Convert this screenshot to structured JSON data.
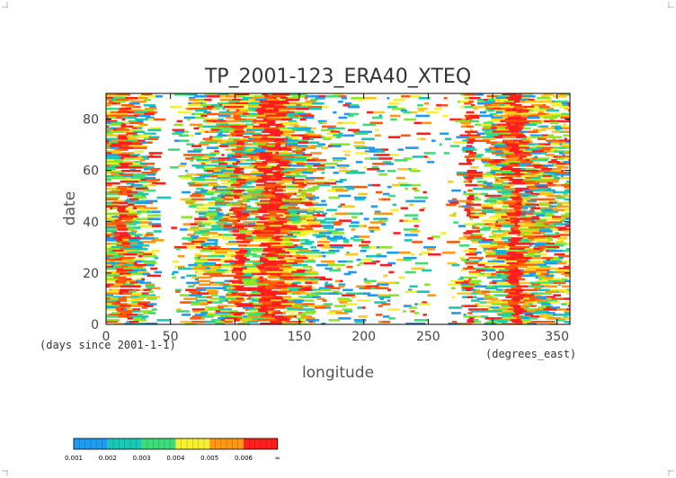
{
  "chart_data": {
    "type": "heatmap",
    "title": "TP_2001-123_ERA40_XTEQ",
    "xlabel": "longitude",
    "ylabel": "date",
    "x_unit_label": "(degrees_east)",
    "y_unit_label": "(days since 2001-1-1)",
    "xlim": [
      0,
      360
    ],
    "ylim": [
      0,
      90
    ],
    "x_ticks": [
      0,
      50,
      100,
      150,
      200,
      250,
      300,
      350
    ],
    "y_ticks": [
      0,
      20,
      40,
      60,
      80
    ],
    "grid": false,
    "legend": {
      "placement": "bottom-left",
      "labels": [
        "0.001",
        "0.002",
        "0.003",
        "0.004",
        "0.005",
        "0.006",
        "∞"
      ],
      "colors": [
        "#1e9bf0",
        "#19c8b4",
        "#3cdc78",
        "#8ce628",
        "#f5f032",
        "#ffc81e",
        "#ff9614",
        "#ff5a0a",
        "#ff1e1e"
      ]
    },
    "density_profile": {
      "x": [
        0,
        10,
        20,
        30,
        35,
        40,
        45,
        55,
        60,
        70,
        80,
        90,
        100,
        110,
        120,
        130,
        140,
        150,
        160,
        170,
        180,
        200,
        220,
        240,
        260,
        270,
        275,
        280,
        285,
        290,
        300,
        310,
        320,
        330,
        340,
        350,
        360
      ],
      "y": [
        0.85,
        0.85,
        0.75,
        0.55,
        0.35,
        0.0,
        0.0,
        0.15,
        0.35,
        0.6,
        0.7,
        0.7,
        0.9,
        0.7,
        0.95,
        0.9,
        0.85,
        0.7,
        0.5,
        0.35,
        0.25,
        0.2,
        0.18,
        0.18,
        0.1,
        0.1,
        0.3,
        0.95,
        0.4,
        0.55,
        0.8,
        0.95,
        0.9,
        0.8,
        0.7,
        0.65,
        0.65
      ]
    },
    "hot_bands": [
      {
        "lon": 10,
        "width": 4
      },
      {
        "lon": 100,
        "width": 4
      },
      {
        "lon": 120,
        "width": 6
      },
      {
        "lon": 130,
        "width": 6
      },
      {
        "lon": 280,
        "width": 3
      },
      {
        "lon": 315,
        "width": 8
      }
    ]
  }
}
